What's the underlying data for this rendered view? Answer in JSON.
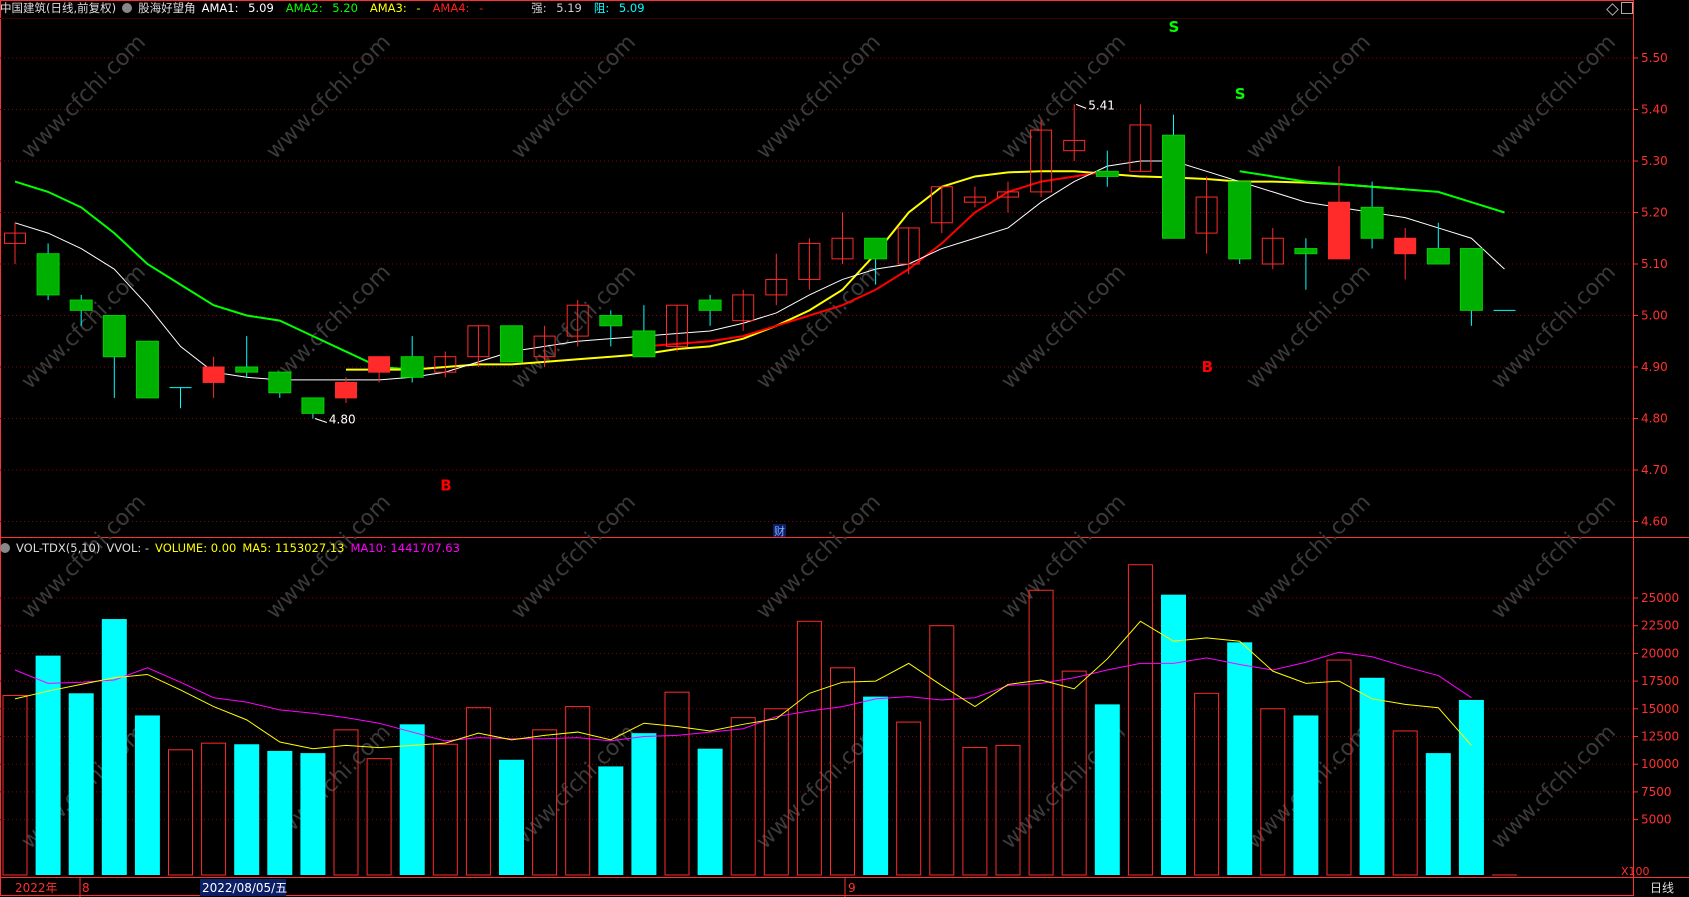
{
  "header": {
    "stock": "中国建筑(日线,前复权)",
    "indicator": "股海好望角",
    "ama1_label": "AMA1:",
    "ama1_value": "5.09",
    "ama2_label": "AMA2:",
    "ama2_value": "5.20",
    "ama3_label": "AMA3:",
    "ama3_value": "-",
    "ama4_label": "AMA4:",
    "ama4_value": "-",
    "strong_label": "强:",
    "strong_value": "5.19",
    "resist_label": "阻:",
    "resist_value": "5.09"
  },
  "vol_header": {
    "name": "VOL-TDX(5,10)",
    "vvol": "VVOL: -",
    "volume": "VOLUME: 0.00",
    "ma5": "MA5: 1153027.13",
    "ma10": "MA10: 1441707.63"
  },
  "price_axis": [
    "5.50",
    "5.40",
    "5.30",
    "5.20",
    "5.10",
    "5.00",
    "4.90",
    "4.80",
    "4.70",
    "4.60"
  ],
  "vol_axis": [
    "25000",
    "22500",
    "20000",
    "17500",
    "15000",
    "12500",
    "10000",
    "7500",
    "5000"
  ],
  "vol_unit": "X100",
  "date_labels": {
    "year": "2022年",
    "month8": "8",
    "date": "2022/08/05/五",
    "month9": "9"
  },
  "period": "日线",
  "annotations": {
    "high": "5.41",
    "low": "4.80",
    "fin": "财",
    "s": "S",
    "b": "B"
  },
  "watermark": "www.cfchi.com",
  "colors": {
    "up": "#ff2a2a",
    "down": "#00b000",
    "vol_down": "#00ffff",
    "ama1": "#ffffff",
    "ama2": "#00ff00",
    "ama3": "#ffff00",
    "ama4": "#ff0000",
    "ma5": "#ffff00",
    "ma10": "#ff00ff",
    "grid": "#8b0000",
    "axis": "#ff3030"
  },
  "chart_data": {
    "type": "candlestick",
    "candles": [
      [
        5.14,
        5.16,
        5.18,
        5.1
      ],
      [
        5.12,
        5.04,
        5.14,
        5.03
      ],
      [
        5.03,
        5.01,
        5.04,
        4.98
      ],
      [
        5.0,
        4.92,
        5.0,
        4.84
      ],
      [
        4.95,
        4.84,
        4.95,
        4.84
      ],
      [
        4.86,
        4.86,
        4.86,
        4.82
      ],
      [
        4.87,
        4.9,
        4.92,
        4.84
      ],
      [
        4.9,
        4.89,
        4.96,
        4.88
      ],
      [
        4.89,
        4.85,
        4.89,
        4.84
      ],
      [
        4.84,
        4.81,
        4.84,
        4.8
      ],
      [
        4.84,
        4.87,
        4.88,
        4.83
      ],
      [
        4.89,
        4.92,
        4.92,
        4.87
      ],
      [
        4.92,
        4.88,
        4.96,
        4.87
      ],
      [
        4.89,
        4.92,
        4.93,
        4.88
      ],
      [
        4.92,
        4.98,
        4.98,
        4.9
      ],
      [
        4.98,
        4.91,
        4.98,
        4.91
      ],
      [
        4.92,
        4.96,
        4.98,
        4.9
      ],
      [
        4.96,
        5.02,
        5.03,
        4.94
      ],
      [
        5.0,
        4.98,
        5.01,
        4.94
      ],
      [
        4.97,
        4.92,
        5.02,
        4.92
      ],
      [
        4.94,
        5.02,
        5.02,
        4.93
      ],
      [
        5.03,
        5.01,
        5.04,
        4.98
      ],
      [
        4.99,
        5.04,
        5.05,
        4.97
      ],
      [
        5.04,
        5.07,
        5.12,
        5.02
      ],
      [
        5.07,
        5.14,
        5.15,
        5.05
      ],
      [
        5.11,
        5.15,
        5.2,
        5.1
      ],
      [
        5.15,
        5.11,
        5.15,
        5.06
      ],
      [
        5.1,
        5.17,
        5.17,
        5.08
      ],
      [
        5.18,
        5.25,
        5.25,
        5.16
      ],
      [
        5.22,
        5.23,
        5.25,
        5.21
      ],
      [
        5.23,
        5.24,
        5.26,
        5.2
      ],
      [
        5.24,
        5.36,
        5.38,
        5.23
      ],
      [
        5.32,
        5.34,
        5.41,
        5.3
      ],
      [
        5.28,
        5.27,
        5.32,
        5.25
      ],
      [
        5.28,
        5.37,
        5.41,
        5.28
      ],
      [
        5.35,
        5.15,
        5.39,
        5.15
      ],
      [
        5.16,
        5.23,
        5.27,
        5.12
      ],
      [
        5.26,
        5.11,
        5.26,
        5.1
      ],
      [
        5.1,
        5.15,
        5.17,
        5.09
      ],
      [
        5.13,
        5.12,
        5.15,
        5.05
      ],
      [
        5.11,
        5.22,
        5.29,
        5.11
      ],
      [
        5.21,
        5.15,
        5.26,
        5.13
      ],
      [
        5.12,
        5.15,
        5.17,
        5.07
      ],
      [
        5.13,
        5.1,
        5.18,
        5.1
      ],
      [
        5.13,
        5.01,
        5.13,
        4.98
      ],
      [
        5.01,
        5.01,
        5.01,
        5.01
      ]
    ],
    "volumes": [
      16200,
      19800,
      16400,
      23100,
      14400,
      11300,
      11900,
      11800,
      11200,
      11000,
      13100,
      10500,
      13600,
      11800,
      15100,
      10400,
      13100,
      15200,
      9800,
      12800,
      16500,
      11400,
      14200,
      15000,
      22900,
      18700,
      16100,
      13800,
      22500,
      11500,
      11700,
      25700,
      18400,
      15400,
      28000,
      25300,
      16400,
      21000,
      15000,
      14400,
      19400,
      17800,
      13000,
      11000,
      15800,
      0
    ],
    "vol_ma5": [
      15900,
      16600,
      17200,
      17800,
      18100,
      16700,
      15200,
      14000,
      12000,
      11400,
      11700,
      11500,
      11700,
      11900,
      12800,
      12200,
      12600,
      12900,
      12200,
      13700,
      13400,
      13000,
      13600,
      14100,
      16400,
      17400,
      17500,
      19100,
      17100,
      15200,
      17200,
      17600,
      16800,
      19500,
      22900,
      21100,
      21400,
      21100,
      18400,
      17300,
      17500,
      15900,
      15400,
      15100,
      11700,
      null
    ],
    "vol_ma10": [
      18500,
      17300,
      17400,
      17600,
      18700,
      17400,
      16000,
      15600,
      14900,
      14600,
      14200,
      13700,
      12900,
      12100,
      12400,
      12300,
      12300,
      12400,
      12100,
      12500,
      12600,
      12900,
      13200,
      14300,
      14800,
      15200,
      15900,
      16100,
      15800,
      16000,
      17100,
      17300,
      17800,
      18500,
      19100,
      19100,
      19600,
      19000,
      18500,
      19200,
      20100,
      19700,
      18800,
      18000,
      16000,
      null
    ],
    "ama1": [
      5.18,
      5.16,
      5.13,
      5.09,
      5.02,
      4.94,
      4.89,
      4.88,
      4.875,
      4.875,
      4.875,
      4.875,
      4.88,
      4.89,
      4.91,
      4.93,
      4.94,
      4.95,
      4.955,
      4.96,
      4.965,
      4.97,
      4.985,
      5.005,
      5.04,
      5.07,
      5.09,
      5.1,
      5.13,
      5.15,
      5.17,
      5.22,
      5.26,
      5.29,
      5.3,
      5.3,
      5.28,
      5.26,
      5.24,
      5.22,
      5.21,
      5.2,
      5.19,
      5.17,
      5.15,
      5.09
    ],
    "ama2": [
      5.26,
      5.24,
      5.21,
      5.16,
      5.1,
      5.06,
      5.02,
      5.0,
      4.99,
      4.96,
      4.93,
      4.9,
      4.895
    ],
    "ama3": [
      4.895,
      4.895,
      4.895,
      4.9,
      4.905,
      4.905,
      4.91,
      4.915,
      4.92,
      4.925,
      4.935,
      4.94,
      4.955,
      4.98,
      5.01,
      5.05,
      5.12,
      5.2,
      5.25,
      5.27,
      5.278,
      5.28,
      5.28,
      5.275,
      5.27,
      5.268,
      5.265,
      5.26,
      5.26,
      5.258,
      5.255,
      5.25,
      5.245
    ],
    "ama4": [
      4.94,
      4.945,
      4.95,
      4.96,
      4.98,
      5.0,
      5.02,
      5.05,
      5.09,
      5.14,
      5.2,
      5.24,
      5.26,
      5.27,
      5.28
    ],
    "signals": [
      {
        "label": "S",
        "index": 35,
        "price": 5.56
      },
      {
        "label": "S",
        "index": 37,
        "price": 5.43
      },
      {
        "label": "B",
        "index": 13,
        "price": 4.67
      },
      {
        "label": "B",
        "index": 36,
        "price": 4.9
      }
    ]
  }
}
